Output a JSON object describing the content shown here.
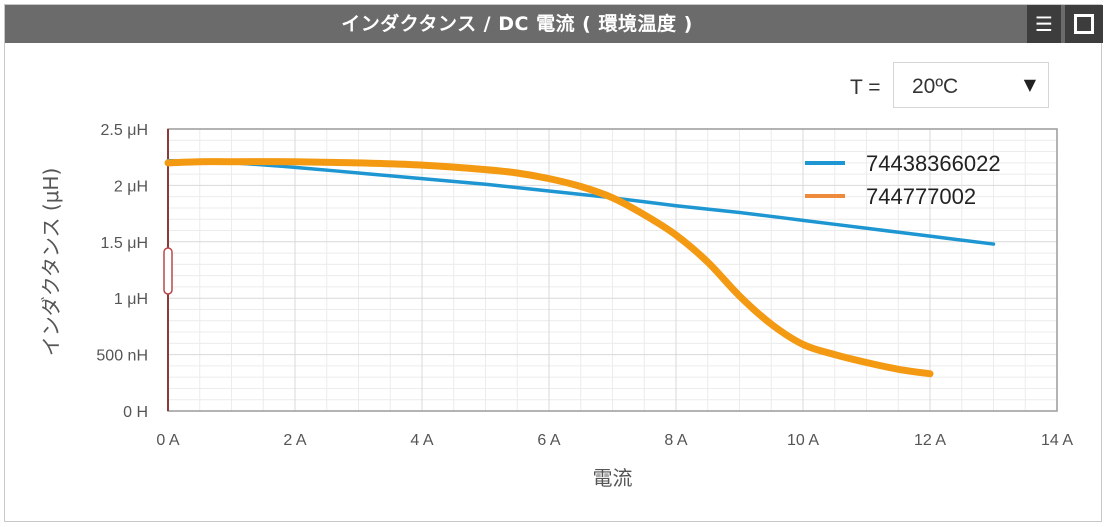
{
  "window": {
    "title": "インダクタンス / DC 電流 ( 環境温度 )",
    "menu_icon": "hamburger-menu-icon",
    "maximize_icon": "maximize-icon"
  },
  "temperature": {
    "label": "T =",
    "selected": "20ºC"
  },
  "colors": {
    "titlebar": "#6b6b6b",
    "series_1": "#1e96d2",
    "series_2": "#f39a12",
    "legend_2": "#ee8a3c"
  },
  "chart_data": {
    "type": "line",
    "title": "",
    "xlabel": "電流",
    "ylabel": "インダクタンス (μH)",
    "xlim": [
      0,
      14
    ],
    "ylim": [
      0,
      2.5
    ],
    "x_ticks": [
      {
        "value": 0,
        "label": "0 A"
      },
      {
        "value": 2,
        "label": "2 A"
      },
      {
        "value": 4,
        "label": "4 A"
      },
      {
        "value": 6,
        "label": "6 A"
      },
      {
        "value": 8,
        "label": "8 A"
      },
      {
        "value": 10,
        "label": "10 A"
      },
      {
        "value": 12,
        "label": "12 A"
      },
      {
        "value": 14,
        "label": "14 A"
      }
    ],
    "y_ticks": [
      {
        "value": 0,
        "label": "0 H"
      },
      {
        "value": 0.5,
        "label": "500 nH"
      },
      {
        "value": 1,
        "label": "1 μH"
      },
      {
        "value": 1.5,
        "label": "1.5 μH"
      },
      {
        "value": 2,
        "label": "2 μH"
      },
      {
        "value": 2.5,
        "label": "2.5 μH"
      }
    ],
    "grid": true,
    "legend_position": "top-right",
    "series": [
      {
        "name": "74438366022",
        "x": [
          0,
          1,
          2,
          3,
          4,
          5,
          6,
          7,
          8,
          9,
          10,
          11,
          12,
          13
        ],
        "y": [
          2.22,
          2.2,
          2.16,
          2.11,
          2.06,
          2.01,
          1.95,
          1.89,
          1.82,
          1.76,
          1.69,
          1.62,
          1.55,
          1.48
        ]
      },
      {
        "name": "744777002",
        "x": [
          0,
          0.5,
          1,
          2,
          3,
          4,
          5,
          5.5,
          6,
          6.5,
          7,
          7.5,
          8,
          8.5,
          9,
          9.5,
          10,
          10.5,
          11,
          11.5,
          12
        ],
        "y": [
          2.2,
          2.21,
          2.21,
          2.21,
          2.2,
          2.18,
          2.14,
          2.11,
          2.06,
          1.99,
          1.89,
          1.74,
          1.56,
          1.32,
          1.02,
          0.77,
          0.59,
          0.5,
          0.43,
          0.37,
          0.33
        ]
      }
    ]
  }
}
